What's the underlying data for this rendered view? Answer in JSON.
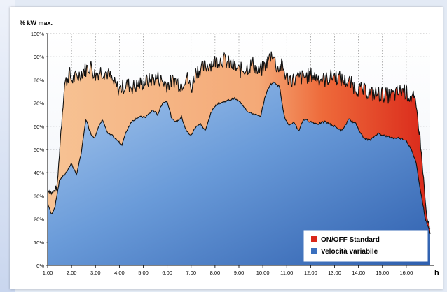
{
  "chart_data": {
    "type": "area",
    "ylabel": "% kW max.",
    "xunit": "h",
    "y_ticks": [
      "0%",
      "10%",
      "20%",
      "30%",
      "40%",
      "50%",
      "60%",
      "70%",
      "80%",
      "90%",
      "100%"
    ],
    "x_ticks": [
      "1:00",
      "2:00",
      "3:00",
      "4:00",
      "5:00",
      "6:00",
      "7:00",
      "8:00",
      "9:00",
      "10:00",
      "11:00",
      "12:00",
      "13:00",
      "14:00",
      "15:00",
      "16:00"
    ],
    "xlim": [
      1.0,
      17.0
    ],
    "ylim": [
      0,
      100
    ],
    "grid": true,
    "legend_position": "bottom-right",
    "series": [
      {
        "name": "ON/OFF Standard",
        "color": "#d9271a",
        "x": [
          1.0,
          1.2,
          1.4,
          1.6,
          1.7,
          1.8,
          1.9,
          2.0,
          2.2,
          2.5,
          2.8,
          3.0,
          3.2,
          3.5,
          3.8,
          4.0,
          4.3,
          4.6,
          5.0,
          5.3,
          5.6,
          6.0,
          6.3,
          6.6,
          6.8,
          7.0,
          7.2,
          7.5,
          7.8,
          8.0,
          8.3,
          8.6,
          9.0,
          9.3,
          9.6,
          9.8,
          10.0,
          10.2,
          10.4,
          10.6,
          10.8,
          11.0,
          11.3,
          11.6,
          12.0,
          12.3,
          12.6,
          13.0,
          13.3,
          13.6,
          14.0,
          14.3,
          14.6,
          15.0,
          15.3,
          15.6,
          15.9,
          16.1,
          16.3,
          16.5,
          16.7,
          16.85,
          17.0
        ],
        "values": [
          33,
          31,
          34,
          65,
          78,
          80,
          83,
          80,
          81,
          84,
          86,
          82,
          84,
          83,
          78,
          76,
          78,
          77,
          79,
          80,
          81,
          78,
          80,
          78,
          82,
          76,
          84,
          85,
          87,
          88,
          89,
          87,
          84,
          85,
          87,
          83,
          85,
          88,
          92,
          85,
          86,
          81,
          80,
          81,
          82,
          81,
          80,
          82,
          80,
          79,
          76,
          75,
          74,
          74,
          73,
          74,
          76,
          73,
          72,
          63,
          40,
          21,
          15
        ]
      },
      {
        "name": "Velocità variabile",
        "color": "#3a6fbe",
        "x": [
          1.0,
          1.15,
          1.3,
          1.5,
          1.7,
          2.0,
          2.2,
          2.4,
          2.6,
          2.8,
          2.95,
          3.1,
          3.3,
          3.5,
          3.7,
          3.9,
          4.1,
          4.3,
          4.5,
          4.8,
          5.1,
          5.4,
          5.6,
          5.8,
          6.0,
          6.2,
          6.4,
          6.6,
          6.8,
          7.0,
          7.2,
          7.4,
          7.6,
          7.8,
          8.0,
          8.2,
          8.5,
          8.8,
          9.1,
          9.4,
          9.7,
          9.9,
          10.1,
          10.3,
          10.5,
          10.7,
          10.9,
          11.1,
          11.3,
          11.5,
          11.7,
          12.0,
          12.3,
          12.6,
          13.0,
          13.3,
          13.6,
          13.9,
          14.2,
          14.5,
          14.8,
          15.1,
          15.4,
          15.7,
          16.0,
          16.2,
          16.4,
          16.6,
          16.8,
          17.0
        ],
        "values": [
          27,
          22,
          25,
          37,
          39,
          44,
          39,
          48,
          63,
          57,
          55,
          59,
          63,
          57,
          56,
          54,
          52,
          58,
          62,
          64,
          64,
          67,
          65,
          70,
          71,
          63,
          62,
          64,
          58,
          56,
          60,
          61,
          58,
          65,
          69,
          70,
          71,
          72,
          70,
          66,
          65,
          64,
          73,
          78,
          79,
          77,
          64,
          60,
          62,
          58,
          63,
          62,
          61,
          62,
          60,
          58,
          63,
          61,
          55,
          54,
          57,
          56,
          55,
          55,
          54,
          50,
          45,
          32,
          20,
          14
        ]
      }
    ]
  }
}
